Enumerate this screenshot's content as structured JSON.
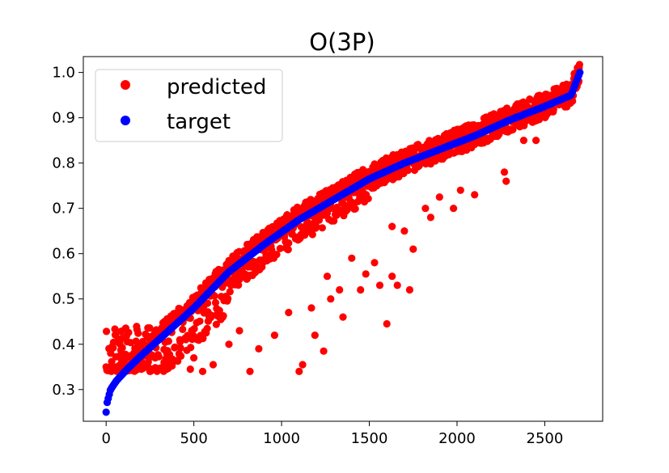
{
  "chart_data": {
    "type": "scatter",
    "title": "O(3P)",
    "xlabel": "",
    "ylabel": "",
    "xlim": [
      -130,
      2830
    ],
    "ylim": [
      0.23,
      1.035
    ],
    "x_ticks": [
      0,
      500,
      1000,
      1500,
      2000,
      2500
    ],
    "y_ticks": [
      0.3,
      0.4,
      0.5,
      0.6,
      0.7,
      0.8,
      0.9,
      1.0
    ],
    "x_tick_labels": [
      "0",
      "500",
      "1000",
      "1500",
      "2000",
      "2500"
    ],
    "y_tick_labels": [
      "0.3",
      "0.4",
      "0.5",
      "0.6",
      "0.7",
      "0.8",
      "0.9",
      "1.0"
    ],
    "grid": false,
    "legend_position": "top-left",
    "n_points": 2700,
    "series": [
      {
        "name": "predicted",
        "color": "#ff0000",
        "target_curve_x": [
          0,
          5,
          25,
          60,
          120,
          200,
          300,
          500,
          700,
          900,
          1100,
          1300,
          1500,
          1700,
          1900,
          2100,
          2300,
          2500,
          2650,
          2700
        ],
        "typical_upper_offset": 0.03,
        "outliers": [
          {
            "x": 1100,
            "y": 0.34
          },
          {
            "x": 1120,
            "y": 0.355
          },
          {
            "x": 1240,
            "y": 0.385
          },
          {
            "x": 1190,
            "y": 0.42
          },
          {
            "x": 1040,
            "y": 0.47
          },
          {
            "x": 1600,
            "y": 0.445
          },
          {
            "x": 1560,
            "y": 0.53
          },
          {
            "x": 1660,
            "y": 0.53
          },
          {
            "x": 1730,
            "y": 0.52
          },
          {
            "x": 1630,
            "y": 0.55
          },
          {
            "x": 1750,
            "y": 0.61
          },
          {
            "x": 1450,
            "y": 0.52
          },
          {
            "x": 1480,
            "y": 0.555
          },
          {
            "x": 1350,
            "y": 0.46
          },
          {
            "x": 1330,
            "y": 0.52
          },
          {
            "x": 1850,
            "y": 0.68
          },
          {
            "x": 1980,
            "y": 0.7
          },
          {
            "x": 2100,
            "y": 0.73
          },
          {
            "x": 2270,
            "y": 0.78
          },
          {
            "x": 2280,
            "y": 0.76
          },
          {
            "x": 2450,
            "y": 0.85
          },
          {
            "x": 2380,
            "y": 0.85
          },
          {
            "x": 2020,
            "y": 0.74
          },
          {
            "x": 1900,
            "y": 0.725
          },
          {
            "x": 1820,
            "y": 0.7
          },
          {
            "x": 1700,
            "y": 0.65
          },
          {
            "x": 1630,
            "y": 0.66
          },
          {
            "x": 1530,
            "y": 0.58
          },
          {
            "x": 1400,
            "y": 0.59
          },
          {
            "x": 1260,
            "y": 0.55
          },
          {
            "x": 1280,
            "y": 0.5
          },
          {
            "x": 1170,
            "y": 0.48
          },
          {
            "x": 960,
            "y": 0.42
          },
          {
            "x": 820,
            "y": 0.34
          },
          {
            "x": 870,
            "y": 0.39
          },
          {
            "x": 760,
            "y": 0.43
          },
          {
            "x": 700,
            "y": 0.4
          },
          {
            "x": 610,
            "y": 0.355
          },
          {
            "x": 550,
            "y": 0.34
          },
          {
            "x": 500,
            "y": 0.37
          },
          {
            "x": 480,
            "y": 0.345
          },
          {
            "x": 420,
            "y": 0.41
          },
          {
            "x": 330,
            "y": 0.36
          },
          {
            "x": 280,
            "y": 0.37
          },
          {
            "x": 250,
            "y": 0.34
          },
          {
            "x": 200,
            "y": 0.345
          },
          {
            "x": 150,
            "y": 0.35
          }
        ]
      },
      {
        "name": "target",
        "color": "#0000ff",
        "x": [
          0,
          5,
          25,
          60,
          120,
          200,
          300,
          500,
          700,
          900,
          1100,
          1300,
          1500,
          1700,
          1900,
          2100,
          2300,
          2500,
          2650,
          2700
        ],
        "y": [
          0.25,
          0.27,
          0.3,
          0.32,
          0.345,
          0.375,
          0.41,
          0.48,
          0.56,
          0.62,
          0.675,
          0.72,
          0.765,
          0.8,
          0.83,
          0.86,
          0.895,
          0.925,
          0.95,
          1.0
        ]
      }
    ]
  }
}
